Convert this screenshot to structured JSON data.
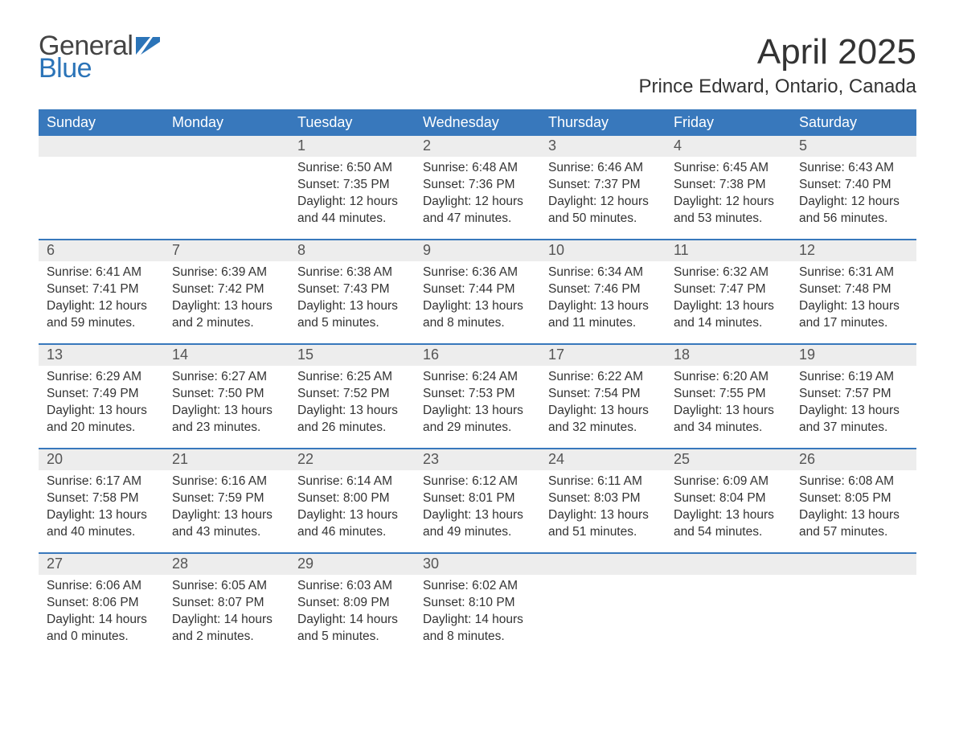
{
  "logo": {
    "text1": "General",
    "text2": "Blue",
    "flag_color": "#2b74b8",
    "text1_color": "#444444"
  },
  "title": "April 2025",
  "location": "Prince Edward, Ontario, Canada",
  "colors": {
    "header_bg": "#3878bc",
    "header_text": "#ffffff",
    "daynum_bg": "#ededed",
    "week_divider": "#3878bc",
    "body_text": "#333333",
    "background": "#ffffff"
  },
  "typography": {
    "title_fontsize": 44,
    "location_fontsize": 24,
    "dayhead_fontsize": 18,
    "daynum_fontsize": 18,
    "body_fontsize": 15.5,
    "logo_fontsize": 34
  },
  "day_headers": [
    "Sunday",
    "Monday",
    "Tuesday",
    "Wednesday",
    "Thursday",
    "Friday",
    "Saturday"
  ],
  "weeks": [
    [
      {
        "daynum": "",
        "sunrise": "",
        "sunset": "",
        "daylight1": "",
        "daylight2": ""
      },
      {
        "daynum": "",
        "sunrise": "",
        "sunset": "",
        "daylight1": "",
        "daylight2": ""
      },
      {
        "daynum": "1",
        "sunrise": "Sunrise: 6:50 AM",
        "sunset": "Sunset: 7:35 PM",
        "daylight1": "Daylight: 12 hours",
        "daylight2": "and 44 minutes."
      },
      {
        "daynum": "2",
        "sunrise": "Sunrise: 6:48 AM",
        "sunset": "Sunset: 7:36 PM",
        "daylight1": "Daylight: 12 hours",
        "daylight2": "and 47 minutes."
      },
      {
        "daynum": "3",
        "sunrise": "Sunrise: 6:46 AM",
        "sunset": "Sunset: 7:37 PM",
        "daylight1": "Daylight: 12 hours",
        "daylight2": "and 50 minutes."
      },
      {
        "daynum": "4",
        "sunrise": "Sunrise: 6:45 AM",
        "sunset": "Sunset: 7:38 PM",
        "daylight1": "Daylight: 12 hours",
        "daylight2": "and 53 minutes."
      },
      {
        "daynum": "5",
        "sunrise": "Sunrise: 6:43 AM",
        "sunset": "Sunset: 7:40 PM",
        "daylight1": "Daylight: 12 hours",
        "daylight2": "and 56 minutes."
      }
    ],
    [
      {
        "daynum": "6",
        "sunrise": "Sunrise: 6:41 AM",
        "sunset": "Sunset: 7:41 PM",
        "daylight1": "Daylight: 12 hours",
        "daylight2": "and 59 minutes."
      },
      {
        "daynum": "7",
        "sunrise": "Sunrise: 6:39 AM",
        "sunset": "Sunset: 7:42 PM",
        "daylight1": "Daylight: 13 hours",
        "daylight2": "and 2 minutes."
      },
      {
        "daynum": "8",
        "sunrise": "Sunrise: 6:38 AM",
        "sunset": "Sunset: 7:43 PM",
        "daylight1": "Daylight: 13 hours",
        "daylight2": "and 5 minutes."
      },
      {
        "daynum": "9",
        "sunrise": "Sunrise: 6:36 AM",
        "sunset": "Sunset: 7:44 PM",
        "daylight1": "Daylight: 13 hours",
        "daylight2": "and 8 minutes."
      },
      {
        "daynum": "10",
        "sunrise": "Sunrise: 6:34 AM",
        "sunset": "Sunset: 7:46 PM",
        "daylight1": "Daylight: 13 hours",
        "daylight2": "and 11 minutes."
      },
      {
        "daynum": "11",
        "sunrise": "Sunrise: 6:32 AM",
        "sunset": "Sunset: 7:47 PM",
        "daylight1": "Daylight: 13 hours",
        "daylight2": "and 14 minutes."
      },
      {
        "daynum": "12",
        "sunrise": "Sunrise: 6:31 AM",
        "sunset": "Sunset: 7:48 PM",
        "daylight1": "Daylight: 13 hours",
        "daylight2": "and 17 minutes."
      }
    ],
    [
      {
        "daynum": "13",
        "sunrise": "Sunrise: 6:29 AM",
        "sunset": "Sunset: 7:49 PM",
        "daylight1": "Daylight: 13 hours",
        "daylight2": "and 20 minutes."
      },
      {
        "daynum": "14",
        "sunrise": "Sunrise: 6:27 AM",
        "sunset": "Sunset: 7:50 PM",
        "daylight1": "Daylight: 13 hours",
        "daylight2": "and 23 minutes."
      },
      {
        "daynum": "15",
        "sunrise": "Sunrise: 6:25 AM",
        "sunset": "Sunset: 7:52 PM",
        "daylight1": "Daylight: 13 hours",
        "daylight2": "and 26 minutes."
      },
      {
        "daynum": "16",
        "sunrise": "Sunrise: 6:24 AM",
        "sunset": "Sunset: 7:53 PM",
        "daylight1": "Daylight: 13 hours",
        "daylight2": "and 29 minutes."
      },
      {
        "daynum": "17",
        "sunrise": "Sunrise: 6:22 AM",
        "sunset": "Sunset: 7:54 PM",
        "daylight1": "Daylight: 13 hours",
        "daylight2": "and 32 minutes."
      },
      {
        "daynum": "18",
        "sunrise": "Sunrise: 6:20 AM",
        "sunset": "Sunset: 7:55 PM",
        "daylight1": "Daylight: 13 hours",
        "daylight2": "and 34 minutes."
      },
      {
        "daynum": "19",
        "sunrise": "Sunrise: 6:19 AM",
        "sunset": "Sunset: 7:57 PM",
        "daylight1": "Daylight: 13 hours",
        "daylight2": "and 37 minutes."
      }
    ],
    [
      {
        "daynum": "20",
        "sunrise": "Sunrise: 6:17 AM",
        "sunset": "Sunset: 7:58 PM",
        "daylight1": "Daylight: 13 hours",
        "daylight2": "and 40 minutes."
      },
      {
        "daynum": "21",
        "sunrise": "Sunrise: 6:16 AM",
        "sunset": "Sunset: 7:59 PM",
        "daylight1": "Daylight: 13 hours",
        "daylight2": "and 43 minutes."
      },
      {
        "daynum": "22",
        "sunrise": "Sunrise: 6:14 AM",
        "sunset": "Sunset: 8:00 PM",
        "daylight1": "Daylight: 13 hours",
        "daylight2": "and 46 minutes."
      },
      {
        "daynum": "23",
        "sunrise": "Sunrise: 6:12 AM",
        "sunset": "Sunset: 8:01 PM",
        "daylight1": "Daylight: 13 hours",
        "daylight2": "and 49 minutes."
      },
      {
        "daynum": "24",
        "sunrise": "Sunrise: 6:11 AM",
        "sunset": "Sunset: 8:03 PM",
        "daylight1": "Daylight: 13 hours",
        "daylight2": "and 51 minutes."
      },
      {
        "daynum": "25",
        "sunrise": "Sunrise: 6:09 AM",
        "sunset": "Sunset: 8:04 PM",
        "daylight1": "Daylight: 13 hours",
        "daylight2": "and 54 minutes."
      },
      {
        "daynum": "26",
        "sunrise": "Sunrise: 6:08 AM",
        "sunset": "Sunset: 8:05 PM",
        "daylight1": "Daylight: 13 hours",
        "daylight2": "and 57 minutes."
      }
    ],
    [
      {
        "daynum": "27",
        "sunrise": "Sunrise: 6:06 AM",
        "sunset": "Sunset: 8:06 PM",
        "daylight1": "Daylight: 14 hours",
        "daylight2": "and 0 minutes."
      },
      {
        "daynum": "28",
        "sunrise": "Sunrise: 6:05 AM",
        "sunset": "Sunset: 8:07 PM",
        "daylight1": "Daylight: 14 hours",
        "daylight2": "and 2 minutes."
      },
      {
        "daynum": "29",
        "sunrise": "Sunrise: 6:03 AM",
        "sunset": "Sunset: 8:09 PM",
        "daylight1": "Daylight: 14 hours",
        "daylight2": "and 5 minutes."
      },
      {
        "daynum": "30",
        "sunrise": "Sunrise: 6:02 AM",
        "sunset": "Sunset: 8:10 PM",
        "daylight1": "Daylight: 14 hours",
        "daylight2": "and 8 minutes."
      },
      {
        "daynum": "",
        "sunrise": "",
        "sunset": "",
        "daylight1": "",
        "daylight2": ""
      },
      {
        "daynum": "",
        "sunrise": "",
        "sunset": "",
        "daylight1": "",
        "daylight2": ""
      },
      {
        "daynum": "",
        "sunrise": "",
        "sunset": "",
        "daylight1": "",
        "daylight2": ""
      }
    ]
  ]
}
